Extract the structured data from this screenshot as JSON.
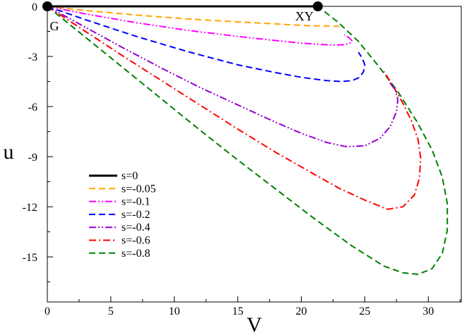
{
  "chart_data": {
    "type": "line",
    "xlabel": "V",
    "ylabel": "u",
    "xlim": [
      0,
      32.6
    ],
    "ylim": [
      -17.7,
      0
    ],
    "xticks": [
      0,
      5,
      10,
      15,
      20,
      25,
      30
    ],
    "yticks": [
      0,
      -3,
      -6,
      -9,
      -12,
      -15
    ],
    "grid": false,
    "legend_position": "lower-left",
    "points": [
      {
        "label": "G",
        "x": 0,
        "y": 0
      },
      {
        "label": "XY",
        "x": 21.3,
        "y": 0
      }
    ],
    "series": [
      {
        "name": "s=0",
        "color": "#000000",
        "dash": "solid",
        "x": [
          0,
          21.3
        ],
        "y": [
          0,
          0
        ]
      },
      {
        "name": "s=-0.05",
        "color": "#ffa500",
        "dash": "dash",
        "x": [
          0,
          3,
          7,
          11,
          15,
          18,
          20,
          21.5,
          22.2,
          23.0
        ],
        "y": [
          0,
          -0.25,
          -0.52,
          -0.75,
          -0.93,
          -1.05,
          -1.14,
          -1.17,
          -1.18,
          -1.2
        ]
      },
      {
        "name": "s=-0.1",
        "color": "#ff00ff",
        "dash": "dashdotdot",
        "x": [
          0,
          3,
          7,
          11,
          15,
          18,
          20,
          21.5,
          22.5,
          23.3,
          23.8,
          24.0,
          23.8,
          23.4
        ],
        "y": [
          0,
          -0.45,
          -0.98,
          -1.43,
          -1.8,
          -2.05,
          -2.2,
          -2.28,
          -2.32,
          -2.3,
          -2.22,
          -2.07,
          -1.9,
          -1.7
        ]
      },
      {
        "name": "s=-0.2",
        "color": "#0000ff",
        "dash": "dash",
        "x": [
          0,
          3,
          7,
          11,
          15,
          18,
          20,
          22,
          23.2,
          24.0,
          24.6,
          24.9,
          25.0,
          24.8,
          24.5
        ],
        "y": [
          0,
          -0.8,
          -1.8,
          -2.7,
          -3.5,
          -3.97,
          -4.25,
          -4.45,
          -4.5,
          -4.45,
          -4.25,
          -3.9,
          -3.5,
          -3.1,
          -2.75
        ]
      },
      {
        "name": "s=-0.4",
        "color": "#9400d3",
        "dash": "dashdotdot",
        "x": [
          0,
          3,
          6,
          9,
          12,
          15,
          18,
          20,
          22,
          23.5,
          25,
          26.2,
          27,
          27.5,
          27.6,
          27.4,
          26.9
        ],
        "y": [
          0,
          -1.25,
          -2.5,
          -3.7,
          -4.85,
          -5.9,
          -6.95,
          -7.6,
          -8.15,
          -8.4,
          -8.35,
          -7.9,
          -7.2,
          -6.3,
          -5.6,
          -5.0,
          -4.5
        ]
      },
      {
        "name": "s=-0.6",
        "color": "#ff0000",
        "dash": "dashdot",
        "x": [
          0,
          3,
          6,
          9,
          12,
          15,
          18,
          21,
          23,
          25,
          26.8,
          28.0,
          28.9,
          29.3,
          29.4,
          29.2,
          28.7,
          28.0,
          27.1,
          26.5
        ],
        "y": [
          0,
          -1.5,
          -3.0,
          -4.45,
          -5.9,
          -7.35,
          -8.75,
          -10.05,
          -10.9,
          -11.6,
          -12.15,
          -12.0,
          -11.3,
          -10.3,
          -9.1,
          -8.0,
          -6.9,
          -5.8,
          -4.6,
          -3.9
        ]
      },
      {
        "name": "s=-0.8",
        "color": "#008000",
        "dash": "dash",
        "x": [
          0,
          3,
          6,
          9,
          12,
          15,
          18,
          21,
          24,
          26.5,
          28,
          29.2,
          30.3,
          31.1,
          31.5,
          31.5,
          31.1,
          30.3,
          29.1,
          27.6,
          26.0,
          24.5,
          22.9,
          21.3
        ],
        "y": [
          0,
          -1.85,
          -3.7,
          -5.55,
          -7.4,
          -9.2,
          -10.95,
          -12.7,
          -14.35,
          -15.55,
          -15.95,
          -16.05,
          -15.7,
          -14.8,
          -13.4,
          -11.8,
          -10.2,
          -8.6,
          -6.9,
          -5.1,
          -3.5,
          -2.1,
          -0.95,
          0
        ]
      }
    ]
  }
}
